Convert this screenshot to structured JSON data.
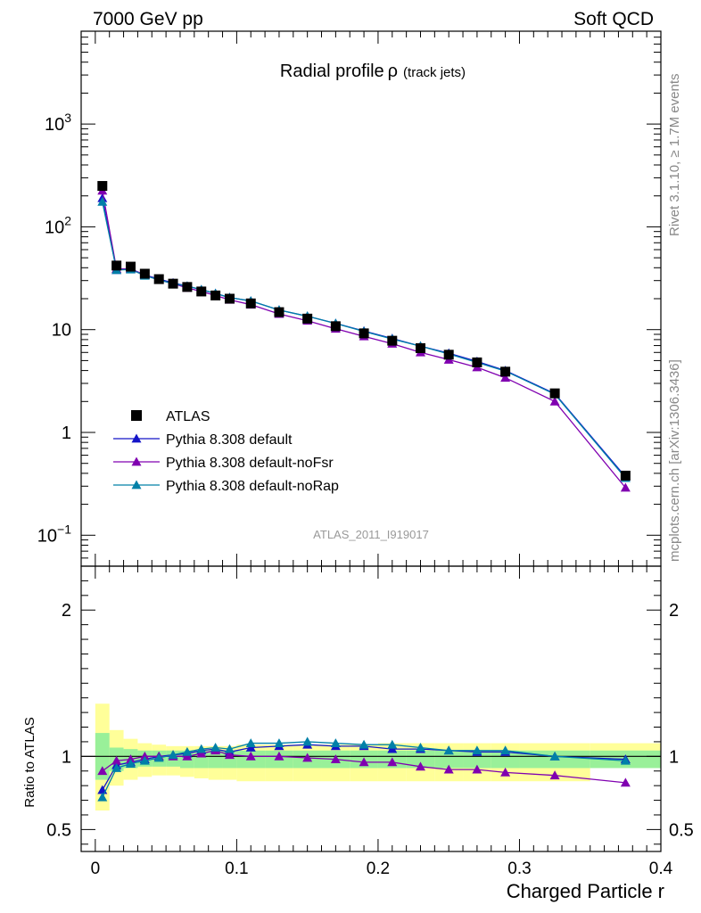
{
  "header": {
    "left": "7000 GeV pp",
    "right": "Soft QCD"
  },
  "side_text": {
    "rivet": "Rivet 3.1.10, ≥ 1.7M events",
    "mcplots": "mcplots.cern.ch [arXiv:1306.3436]"
  },
  "watermark": "ATLAS_2011_I919017",
  "colors": {
    "data": "#000000",
    "default": "#1515c8",
    "noFsr": "#8000b0",
    "noRap": "#0080a8",
    "band_outer": "#ffff99",
    "band_inner": "#99f099"
  },
  "chart_data": [
    {
      "type": "scatter",
      "panel": "main",
      "title_main": "Radial profile",
      "title_symbol": "ρ",
      "title_sub": "(track jets)",
      "xlabel": "",
      "ylabel": "",
      "yscale": "log",
      "xlim": [
        -0.01,
        0.4
      ],
      "ylim": [
        0.05,
        8000
      ],
      "grid": false,
      "legend_position": "lower-left",
      "x": [
        0.005,
        0.015,
        0.025,
        0.035,
        0.045,
        0.055,
        0.065,
        0.075,
        0.085,
        0.095,
        0.11,
        0.13,
        0.15,
        0.17,
        0.19,
        0.21,
        0.23,
        0.25,
        0.27,
        0.29,
        0.325,
        0.375
      ],
      "yticks": [
        {
          "value": 0.1,
          "base": "10",
          "exp": "−1"
        },
        {
          "value": 1,
          "base": "1",
          "exp": ""
        },
        {
          "value": 10,
          "base": "10",
          "exp": ""
        },
        {
          "value": 100,
          "base": "10",
          "exp": "2"
        },
        {
          "value": 1000,
          "base": "10",
          "exp": "3"
        }
      ],
      "series": [
        {
          "name": "ATLAS",
          "key": "data",
          "marker": "square",
          "line": false,
          "values": [
            250,
            42,
            41,
            35,
            31,
            28,
            26,
            23.5,
            21.5,
            20,
            18,
            14.8,
            12.8,
            10.8,
            9.2,
            7.8,
            6.6,
            5.7,
            4.8,
            3.9,
            2.4,
            0.38
          ]
        },
        {
          "name": "Pythia 8.308 default",
          "key": "default",
          "marker": "triangle",
          "line": true,
          "values": [
            190,
            38,
            39,
            34,
            31,
            28.5,
            26.5,
            24.5,
            22.5,
            20.5,
            19,
            15.5,
            13.5,
            11.5,
            9.7,
            8.2,
            6.9,
            5.9,
            4.9,
            4.0,
            2.38,
            0.37
          ]
        },
        {
          "name": "Pythia 8.308 default-noFsr",
          "key": "noFsr",
          "marker": "triangle",
          "line": true,
          "values": [
            225,
            39,
            39,
            34,
            30.5,
            28,
            25.5,
            23.5,
            21.5,
            19.5,
            17.5,
            14.2,
            12.2,
            10.2,
            8.6,
            7.3,
            6.0,
            5.1,
            4.3,
            3.4,
            2.0,
            0.29
          ]
        },
        {
          "name": "Pythia 8.308 default-noRap",
          "key": "noRap",
          "marker": "triangle",
          "line": true,
          "values": [
            175,
            38,
            38.5,
            33.5,
            30.5,
            28,
            26.5,
            24.5,
            22.5,
            20.5,
            19,
            15.5,
            13.5,
            11.5,
            9.6,
            8.1,
            6.9,
            5.8,
            4.8,
            3.95,
            2.35,
            0.36
          ]
        }
      ]
    },
    {
      "type": "scatter",
      "panel": "ratio",
      "xlabel": "Charged Particle r",
      "ylabel": "Ratio to ATLAS",
      "xlim": [
        -0.01,
        0.4
      ],
      "ylim": [
        0.35,
        2.3
      ],
      "grid": false,
      "x": [
        0.005,
        0.015,
        0.025,
        0.035,
        0.045,
        0.055,
        0.065,
        0.075,
        0.085,
        0.095,
        0.11,
        0.13,
        0.15,
        0.17,
        0.19,
        0.21,
        0.23,
        0.25,
        0.27,
        0.29,
        0.325,
        0.375
      ],
      "xticks": [
        0,
        0.1,
        0.2,
        0.3,
        0.4
      ],
      "xtick_labels": [
        "0",
        "0.1",
        "0.2",
        "0.3",
        "0.4"
      ],
      "yticks": [
        0.5,
        1,
        2
      ],
      "ytick_labels": [
        "0.5",
        "1",
        "2"
      ],
      "bands": {
        "edges": [
          0,
          0.01,
          0.02,
          0.03,
          0.04,
          0.05,
          0.06,
          0.07,
          0.08,
          0.09,
          0.1,
          0.12,
          0.14,
          0.16,
          0.18,
          0.2,
          0.22,
          0.24,
          0.26,
          0.28,
          0.3,
          0.35,
          0.4
        ],
        "outer_lo": [
          0.63,
          0.8,
          0.84,
          0.86,
          0.87,
          0.87,
          0.86,
          0.85,
          0.84,
          0.84,
          0.83,
          0.83,
          0.83,
          0.83,
          0.83,
          0.83,
          0.83,
          0.83,
          0.83,
          0.83,
          0.83,
          0.95
        ],
        "outer_hi": [
          1.36,
          1.18,
          1.12,
          1.09,
          1.08,
          1.07,
          1.07,
          1.07,
          1.07,
          1.07,
          1.08,
          1.08,
          1.08,
          1.08,
          1.08,
          1.09,
          1.09,
          1.09,
          1.09,
          1.09,
          1.09,
          1.09
        ],
        "inner_lo": [
          0.84,
          0.9,
          0.92,
          0.93,
          0.93,
          0.93,
          0.92,
          0.92,
          0.92,
          0.92,
          0.92,
          0.92,
          0.92,
          0.92,
          0.92,
          0.92,
          0.92,
          0.92,
          0.92,
          0.92,
          0.92,
          0.92
        ],
        "inner_hi": [
          1.16,
          1.06,
          1.05,
          1.04,
          1.04,
          1.04,
          1.04,
          1.04,
          1.04,
          1.04,
          1.04,
          1.04,
          1.04,
          1.04,
          1.04,
          1.04,
          1.04,
          1.04,
          1.04,
          1.04,
          1.04,
          1.04
        ]
      },
      "series": [
        {
          "name": "Pythia 8.308 default",
          "key": "default",
          "values": [
            0.77,
            0.94,
            0.96,
            0.98,
            1.0,
            1.01,
            1.02,
            1.04,
            1.05,
            1.03,
            1.06,
            1.07,
            1.08,
            1.07,
            1.07,
            1.05,
            1.05,
            1.04,
            1.03,
            1.03,
            1.0,
            0.98
          ]
        },
        {
          "name": "Pythia 8.308 default-noFsr",
          "key": "noFsr",
          "values": [
            0.9,
            0.97,
            0.98,
            1.0,
            1.0,
            1.0,
            1.0,
            1.02,
            1.04,
            1.01,
            1.0,
            1.0,
            0.99,
            0.98,
            0.96,
            0.96,
            0.93,
            0.91,
            0.91,
            0.89,
            0.87,
            0.82
          ]
        },
        {
          "name": "Pythia 8.308 default-noRap",
          "key": "noRap",
          "values": [
            0.72,
            0.92,
            0.95,
            0.97,
            0.99,
            1.01,
            1.03,
            1.05,
            1.06,
            1.05,
            1.09,
            1.09,
            1.1,
            1.09,
            1.08,
            1.08,
            1.06,
            1.04,
            1.04,
            1.04,
            1.0,
            0.97
          ]
        }
      ]
    }
  ]
}
